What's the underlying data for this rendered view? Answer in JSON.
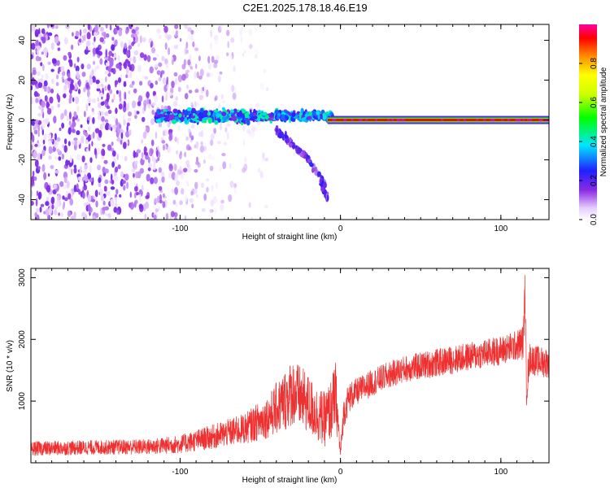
{
  "title": "C2E1.2025.178.18.46.E19",
  "chart_data": [
    {
      "type": "heatmap",
      "xlabel": "Height of straight line (km)",
      "ylabel": "Frequency (Hz)",
      "xlim": [
        -193,
        130
      ],
      "ylim": [
        -50,
        48
      ],
      "xticks": [
        -100,
        0,
        100
      ],
      "xtick_labels": [
        "-100",
        "0",
        "100"
      ],
      "yticks": [
        -40,
        -20,
        0,
        20,
        40
      ],
      "ytick_labels": [
        "-40",
        "-20",
        "0",
        "20",
        "40"
      ],
      "grid": false,
      "colorbar": {
        "label": "Normalized spectral amplitude",
        "range": [
          0,
          1
        ],
        "ticks": [
          0,
          0.2,
          0.4,
          0.6,
          0.8
        ],
        "tick_labels": [
          "0.0",
          "0.2",
          "0.4",
          "0.6",
          "0.8"
        ],
        "colormap": "white-violet-blue-cyan-green-yellow-orange-red-magenta"
      },
      "features": [
        {
          "name": "noise",
          "x_range": [
            -193,
            -45
          ],
          "y_range": [
            -50,
            48
          ],
          "amplitude": 0.15
        },
        {
          "name": "scatter-cluster",
          "x_range": [
            -115,
            -5
          ],
          "y_center": 2,
          "y_spread": 6,
          "amplitude": 0.35
        },
        {
          "name": "descending-branch",
          "x": [
            -40,
            -30,
            -20,
            -12,
            -8
          ],
          "y": [
            -5,
            -12,
            -20,
            -30,
            -40
          ],
          "amplitude": 0.2
        },
        {
          "name": "carrier-line",
          "x_range": [
            -8,
            130
          ],
          "y": 0,
          "amplitude": 1.0
        }
      ]
    },
    {
      "type": "line",
      "color": "#ef3030",
      "xlabel": "Height of straight line (km)",
      "ylabel": "SNR (10 * v/v)",
      "xlim": [
        -193,
        130
      ],
      "ylim": [
        0,
        3150
      ],
      "xticks": [
        -100,
        0,
        100
      ],
      "xtick_labels": [
        "-100",
        "0",
        "100"
      ],
      "yticks": [
        1000,
        2000,
        3000
      ],
      "ytick_labels": [
        "1000",
        "2000",
        "3000"
      ],
      "grid": false,
      "x": [
        -193,
        -150,
        -120,
        -100,
        -80,
        -60,
        -45,
        -35,
        -30,
        -22,
        -15,
        -10,
        -6,
        -3,
        0,
        2,
        5,
        10,
        20,
        30,
        40,
        60,
        80,
        100,
        110,
        114,
        115,
        116,
        118,
        122,
        130
      ],
      "values": [
        230,
        250,
        260,
        300,
        420,
        550,
        750,
        1000,
        1150,
        1000,
        800,
        700,
        850,
        1100,
        150,
        800,
        1050,
        1150,
        1300,
        1420,
        1520,
        1620,
        1720,
        1820,
        1900,
        1950,
        2800,
        1200,
        1700,
        1650,
        1620
      ],
      "noise_amplitude": [
        120,
        120,
        130,
        150,
        200,
        250,
        350,
        500,
        550,
        500,
        450,
        450,
        500,
        550,
        100,
        250,
        250,
        220,
        220,
        220,
        220,
        230,
        230,
        240,
        250,
        300,
        300,
        300,
        250,
        250,
        250
      ]
    }
  ]
}
